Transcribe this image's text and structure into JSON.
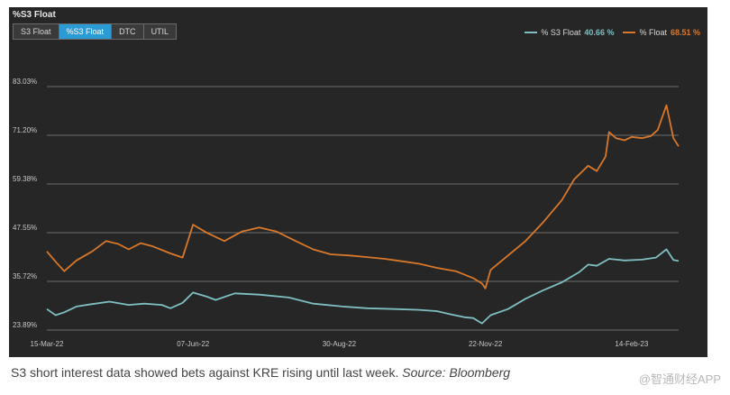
{
  "panel_title": "%S3 Float",
  "tabs": [
    "S3 Float",
    "%S3 Float",
    "DTC",
    "UTIL"
  ],
  "active_tab": 1,
  "legend": [
    {
      "label": "% S3 Float",
      "value": "40.66 %",
      "color": "#7fbfc3"
    },
    {
      "label": "% Float",
      "value": "68.51 %",
      "color": "#d9782a"
    }
  ],
  "caption": {
    "text": "S3 short interest data showed bets against KRE rising until last week.",
    "source": "Source: Bloomberg"
  },
  "watermark": "@智通财经APP",
  "chart_data": {
    "type": "line",
    "x_ticks": [
      "15-Mar-22",
      "07-Jun-22",
      "30-Aug-22",
      "22-Nov-22",
      "14-Feb-23"
    ],
    "y_ticks": [
      "23.89%",
      "35.72%",
      "47.55%",
      "59.38%",
      "71.20%",
      "83.03%"
    ],
    "ylim": [
      23.89,
      83.03
    ],
    "xlim": [
      "2022-03-15",
      "2023-03-13"
    ],
    "grid": true,
    "legend_position": "top-right",
    "series": [
      {
        "name": "% S3 Float",
        "color": "#7fbfc3",
        "points": [
          [
            "2022-03-15",
            29.0
          ],
          [
            "2022-03-20",
            27.5
          ],
          [
            "2022-03-25",
            28.2
          ],
          [
            "2022-04-01",
            29.6
          ],
          [
            "2022-04-10",
            30.2
          ],
          [
            "2022-04-20",
            30.8
          ],
          [
            "2022-05-01",
            30.0
          ],
          [
            "2022-05-10",
            30.3
          ],
          [
            "2022-05-20",
            30.0
          ],
          [
            "2022-05-25",
            29.2
          ],
          [
            "2022-06-01",
            30.5
          ],
          [
            "2022-06-07",
            33.0
          ],
          [
            "2022-06-15",
            32.0
          ],
          [
            "2022-06-20",
            31.2
          ],
          [
            "2022-07-01",
            32.8
          ],
          [
            "2022-07-15",
            32.5
          ],
          [
            "2022-08-01",
            31.8
          ],
          [
            "2022-08-15",
            30.3
          ],
          [
            "2022-09-01",
            29.6
          ],
          [
            "2022-09-15",
            29.2
          ],
          [
            "2022-10-01",
            29.0
          ],
          [
            "2022-10-15",
            28.8
          ],
          [
            "2022-10-25",
            28.5
          ],
          [
            "2022-11-01",
            27.8
          ],
          [
            "2022-11-10",
            27.0
          ],
          [
            "2022-11-15",
            26.8
          ],
          [
            "2022-11-20",
            25.5
          ],
          [
            "2022-11-25",
            27.5
          ],
          [
            "2022-12-05",
            29.0
          ],
          [
            "2022-12-15",
            31.5
          ],
          [
            "2022-12-25",
            33.5
          ],
          [
            "2023-01-05",
            35.5
          ],
          [
            "2023-01-15",
            38.0
          ],
          [
            "2023-01-20",
            39.8
          ],
          [
            "2023-01-25",
            39.5
          ],
          [
            "2023-02-01",
            41.2
          ],
          [
            "2023-02-10",
            40.8
          ],
          [
            "2023-02-20",
            41.0
          ],
          [
            "2023-02-28",
            41.5
          ],
          [
            "2023-03-06",
            43.5
          ],
          [
            "2023-03-10",
            40.9
          ],
          [
            "2023-03-13",
            40.66
          ]
        ]
      },
      {
        "name": "% Float",
        "color": "#d9782a",
        "points": [
          [
            "2022-03-15",
            43.0
          ],
          [
            "2022-03-20",
            40.5
          ],
          [
            "2022-03-25",
            38.2
          ],
          [
            "2022-04-01",
            40.8
          ],
          [
            "2022-04-10",
            43.0
          ],
          [
            "2022-04-18",
            45.5
          ],
          [
            "2022-04-25",
            44.8
          ],
          [
            "2022-05-01",
            43.5
          ],
          [
            "2022-05-08",
            45.0
          ],
          [
            "2022-05-15",
            44.2
          ],
          [
            "2022-05-25",
            42.5
          ],
          [
            "2022-06-01",
            41.5
          ],
          [
            "2022-06-07",
            49.5
          ],
          [
            "2022-06-15",
            47.5
          ],
          [
            "2022-06-25",
            45.5
          ],
          [
            "2022-07-05",
            47.8
          ],
          [
            "2022-07-15",
            48.8
          ],
          [
            "2022-07-25",
            47.8
          ],
          [
            "2022-08-05",
            45.5
          ],
          [
            "2022-08-15",
            43.5
          ],
          [
            "2022-08-25",
            42.3
          ],
          [
            "2022-09-05",
            42.0
          ],
          [
            "2022-09-15",
            41.6
          ],
          [
            "2022-09-25",
            41.2
          ],
          [
            "2022-10-05",
            40.6
          ],
          [
            "2022-10-15",
            40.0
          ],
          [
            "2022-10-25",
            39.0
          ],
          [
            "2022-11-05",
            38.2
          ],
          [
            "2022-11-15",
            36.5
          ],
          [
            "2022-11-20",
            35.2
          ],
          [
            "2022-11-22",
            34.0
          ],
          [
            "2022-11-25",
            38.5
          ],
          [
            "2022-12-05",
            42.0
          ],
          [
            "2022-12-15",
            45.5
          ],
          [
            "2022-12-25",
            50.0
          ],
          [
            "2023-01-05",
            55.5
          ],
          [
            "2023-01-12",
            60.5
          ],
          [
            "2023-01-20",
            63.8
          ],
          [
            "2023-01-25",
            62.5
          ],
          [
            "2023-01-30",
            66.0
          ],
          [
            "2023-02-01",
            72.0
          ],
          [
            "2023-02-05",
            70.5
          ],
          [
            "2023-02-10",
            70.0
          ],
          [
            "2023-02-14",
            70.8
          ],
          [
            "2023-02-20",
            70.5
          ],
          [
            "2023-02-25",
            71.0
          ],
          [
            "2023-03-01",
            72.5
          ],
          [
            "2023-03-06",
            78.5
          ],
          [
            "2023-03-10",
            70.5
          ],
          [
            "2023-03-13",
            68.51
          ]
        ]
      }
    ]
  }
}
